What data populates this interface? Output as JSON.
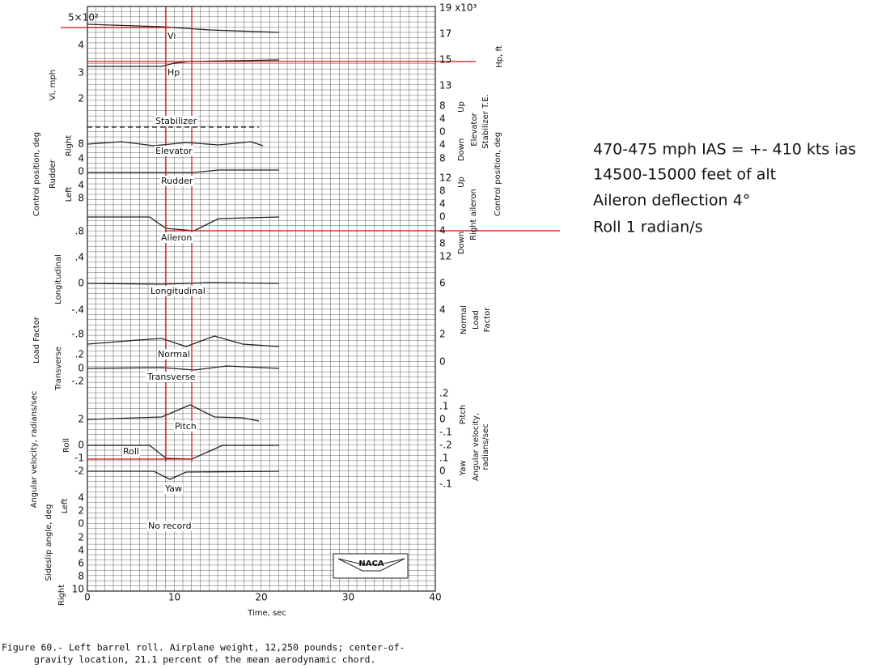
{
  "left_ticks": [
    "5×10²",
    "4",
    "3",
    "2",
    "8",
    "4",
    "0",
    "4",
    "8",
    ".8",
    ".4",
    "0",
    "-.4",
    "-.8",
    ".2",
    "0",
    "-.2",
    "2",
    "0",
    "-1",
    "-2",
    "4",
    "2",
    "0",
    "2",
    "4",
    "6",
    "8",
    "10"
  ],
  "right_ticks": [
    "19 x10³",
    "17",
    "15",
    "13",
    "8",
    "4",
    "0",
    "4",
    "8",
    "12",
    "8",
    "4",
    "0",
    "4",
    "8",
    "12",
    "6",
    "4",
    "2",
    "0",
    ".2",
    ".1",
    "0",
    "-.1",
    "-.2",
    ".1",
    "0",
    "-.1"
  ],
  "left_labels": [
    "Vi, mph",
    "Right",
    "Left",
    "Control position, deg",
    "Rudder",
    "Longitudinal",
    "Load Factor",
    "Transverse",
    "Angular velocity, radians/sec",
    "Roll",
    "Sideslip angle, deg",
    "Left",
    "Right"
  ],
  "right_labels": [
    "Hp, ft",
    "Up",
    "Down",
    "Elevator",
    "Stabilizer T.E.",
    "Control position, deg",
    "Up",
    "Down",
    "Right aileron",
    "Normal",
    "Load",
    "Factor",
    "Pitch",
    "Yaw",
    "Angular velocity,",
    "radians/sec"
  ],
  "trace_labels": [
    "Vi",
    "Hp",
    "Stabilizer",
    "Elevator",
    "Rudder",
    "Aileron",
    "Longitudinal",
    "Normal",
    "Transverse",
    "Pitch",
    "Roll",
    "Yaw",
    "No record"
  ],
  "x_ticks": [
    "0",
    "10",
    "20",
    "30",
    "40"
  ],
  "x_label": "Time, sec",
  "logo": "NACA",
  "caption": [
    "Figure 60.- Left barrel roll.  Airplane weight, 12,250 pounds; center-of-",
    "gravity location, 21.1 percent of the mean aerodynamic chord."
  ],
  "notes": [
    "470-475 mph IAS = +- 410 kts ias",
    "14500-15000 feet of alt",
    "Aileron deflection 4°",
    "Roll 1 radian/s"
  ]
}
